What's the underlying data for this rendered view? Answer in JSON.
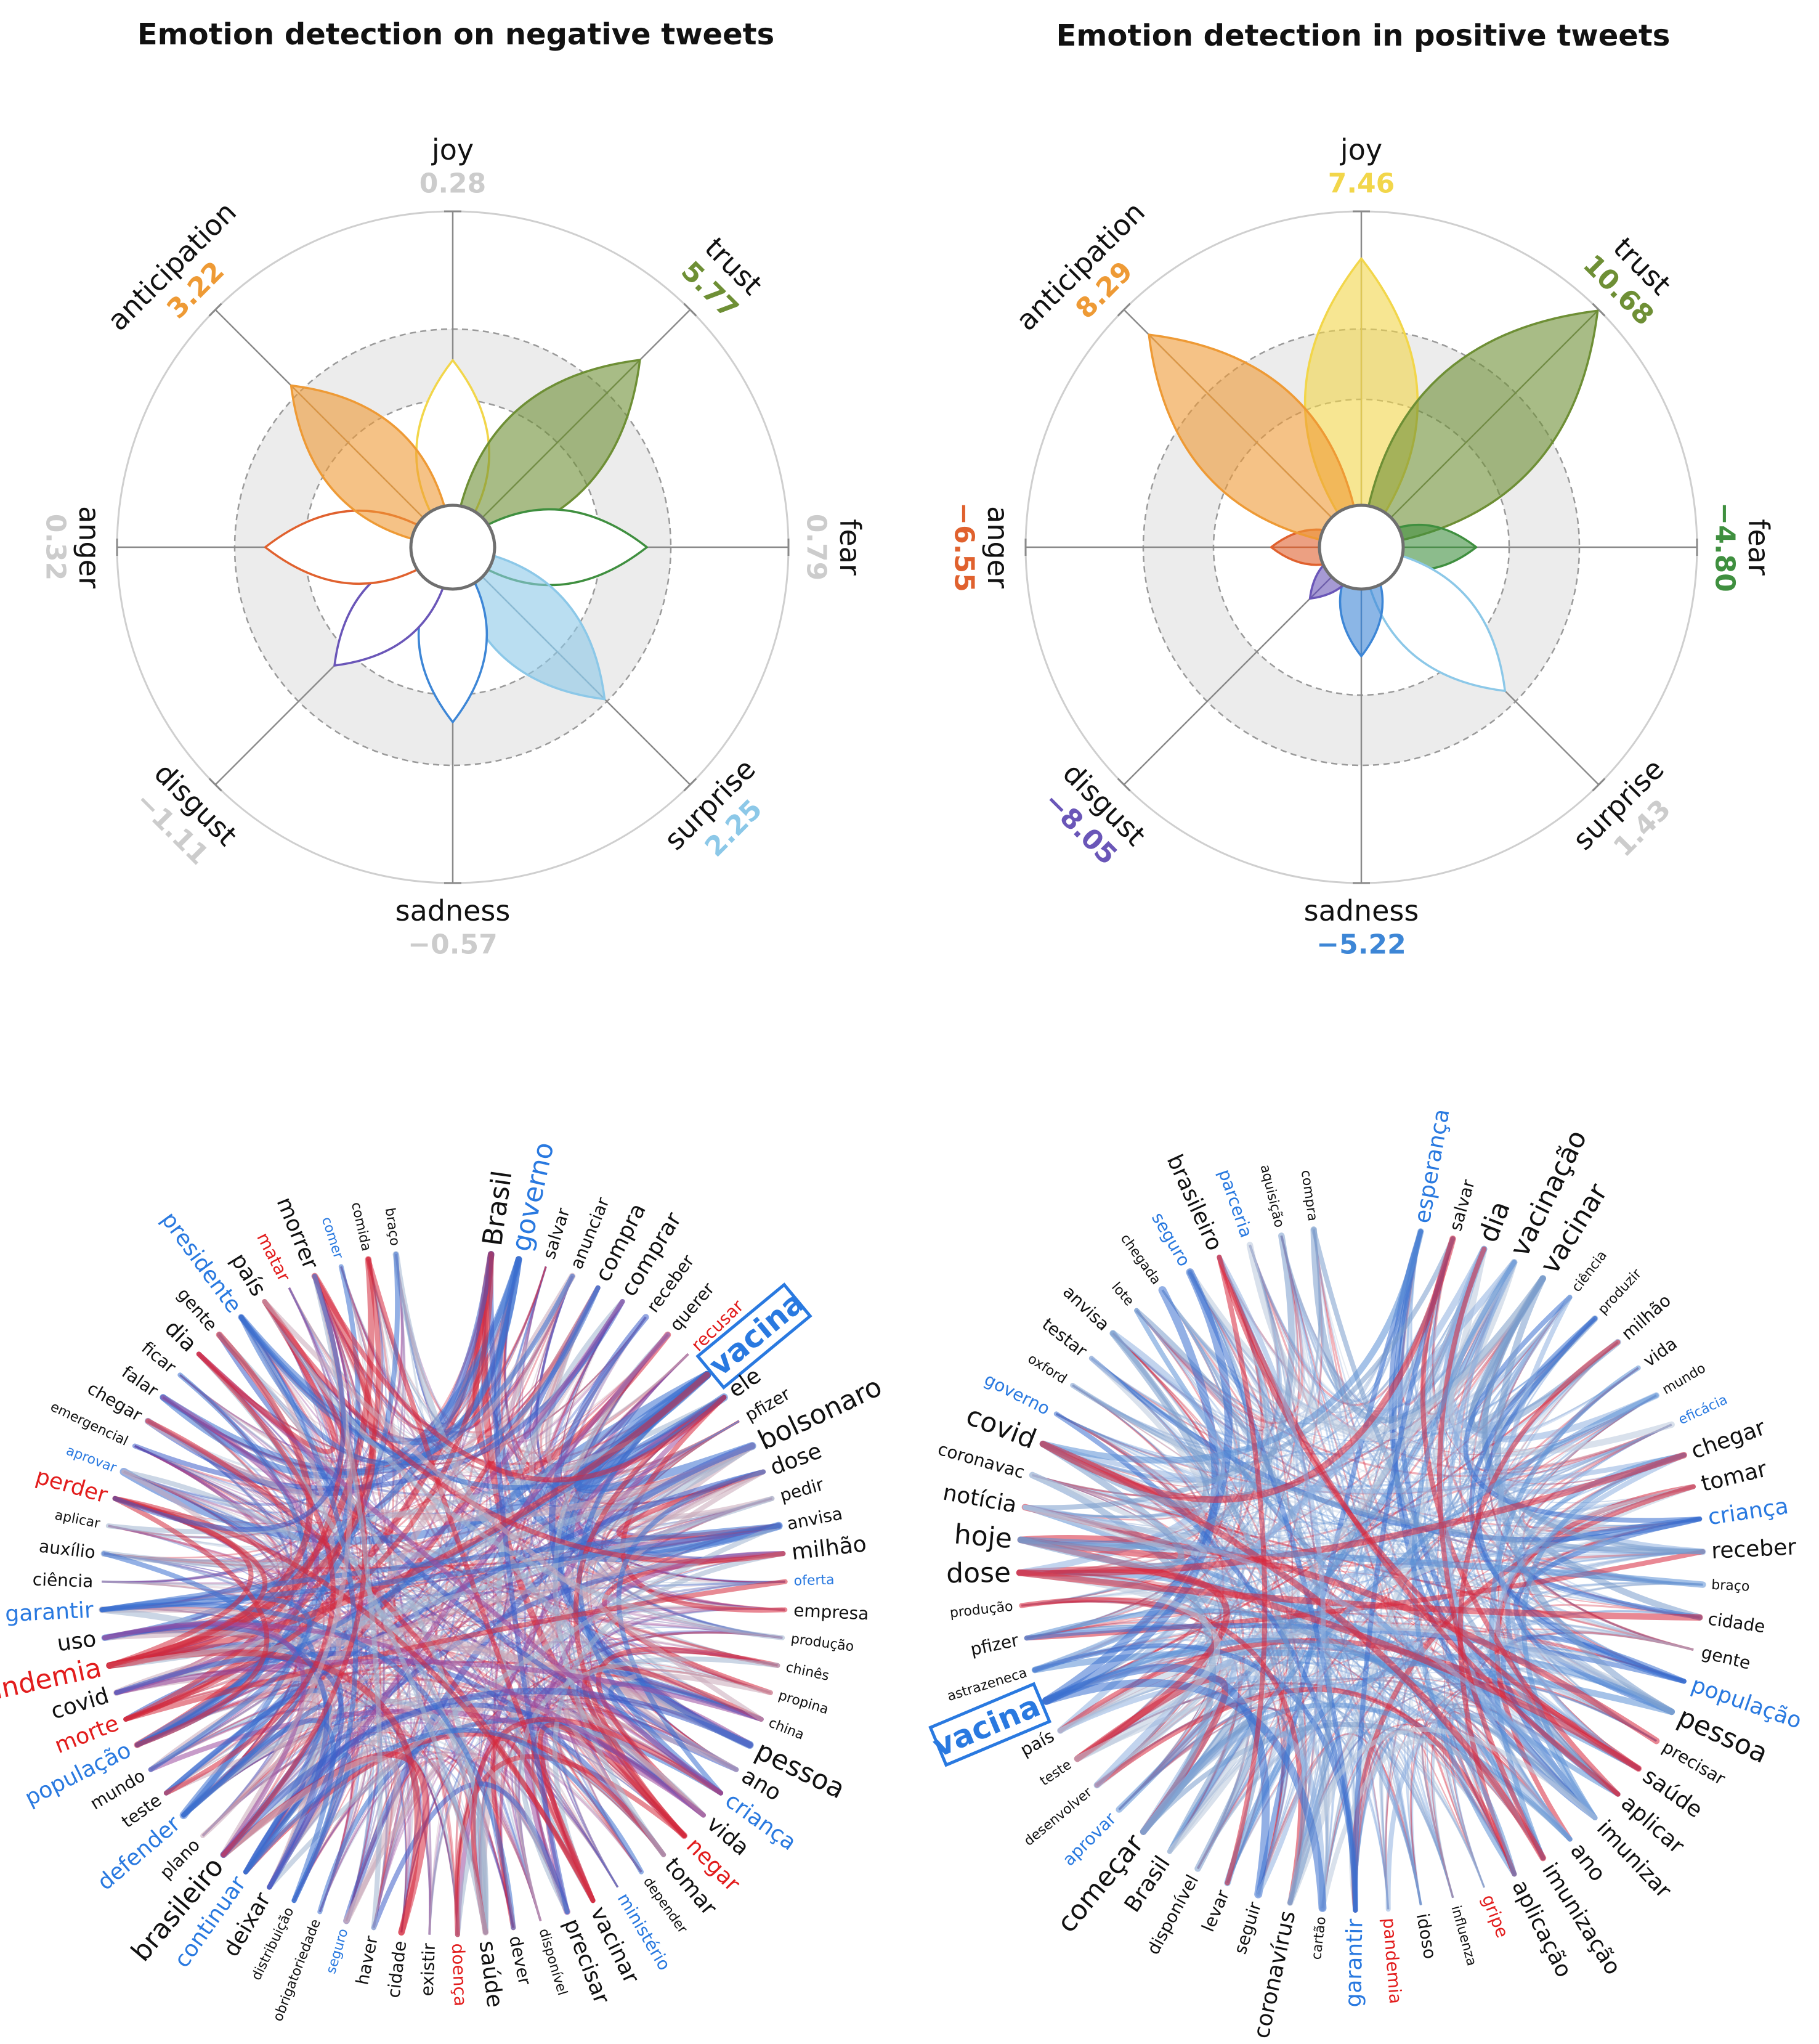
{
  "chart_data": [
    {
      "type": "radar",
      "title": "Emotion detection on negative tweets",
      "categories": [
        "joy",
        "trust",
        "fear",
        "surprise",
        "sadness",
        "disgust",
        "anger",
        "anticipation"
      ],
      "values": [
        0.28,
        5.77,
        0.79,
        2.25,
        -0.57,
        -1.11,
        0.32,
        3.22
      ],
      "value_labels": [
        "0.28",
        "5.77",
        "0.79",
        "2.25",
        "−0.57",
        "−1.11",
        "0.32",
        "3.22"
      ],
      "highlighted": [
        false,
        true,
        false,
        true,
        false,
        false,
        false,
        true
      ],
      "filled": [
        false,
        true,
        false,
        true,
        false,
        false,
        false,
        true
      ],
      "colors": {
        "joy": "#f2d64a",
        "trust": "#6e8f35",
        "fear": "#3f8f3f",
        "surprise": "#8cc8e8",
        "sadness": "#3d86d6",
        "disgust": "#6a56b8",
        "anger": "#e0612e",
        "anticipation": "#ee9a35",
        "muted": "#cccccc"
      }
    },
    {
      "type": "radar",
      "title": "Emotion detection in positive tweets",
      "categories": [
        "joy",
        "trust",
        "fear",
        "surprise",
        "sadness",
        "disgust",
        "anger",
        "anticipation"
      ],
      "values": [
        7.46,
        10.68,
        -4.8,
        1.43,
        -5.22,
        -8.05,
        -6.55,
        8.29
      ],
      "value_labels": [
        "7.46",
        "10.68",
        "−4.80",
        "1.43",
        "−5.22",
        "−8.05",
        "−6.55",
        "8.29"
      ],
      "highlighted": [
        true,
        true,
        true,
        false,
        true,
        true,
        true,
        true
      ],
      "filled": [
        true,
        true,
        true,
        false,
        true,
        true,
        true,
        true
      ],
      "colors": {
        "joy": "#f2d64a",
        "trust": "#6e8f35",
        "fear": "#3f8f3f",
        "surprise": "#8cc8e8",
        "sadness": "#3d86d6",
        "disgust": "#6a56b8",
        "anger": "#e0612e",
        "anticipation": "#ee9a35",
        "muted": "#cccccc"
      }
    },
    {
      "type": "chord",
      "highlighted_word": "vacina",
      "words": [
        {
          "t": "Brasil",
          "s": 3,
          "c": "k"
        },
        {
          "t": "governo",
          "s": 3,
          "c": "b"
        },
        {
          "t": "salvar",
          "s": 1,
          "c": "k"
        },
        {
          "t": "anunciar",
          "s": 1,
          "c": "k"
        },
        {
          "t": "compra",
          "s": 2,
          "c": "k"
        },
        {
          "t": "comprar",
          "s": 2,
          "c": "k"
        },
        {
          "t": "receber",
          "s": 1,
          "c": "k"
        },
        {
          "t": "querer",
          "s": 1,
          "c": "k"
        },
        {
          "t": "recusar",
          "s": 1,
          "c": "r"
        },
        {
          "t": "vacina",
          "s": 4,
          "c": "b"
        },
        {
          "t": "ele",
          "s": 2,
          "c": "k"
        },
        {
          "t": "pfizer",
          "s": 1,
          "c": "k"
        },
        {
          "t": "bolsonaro",
          "s": 3,
          "c": "k"
        },
        {
          "t": "dose",
          "s": 2,
          "c": "k"
        },
        {
          "t": "pedir",
          "s": 1,
          "c": "k"
        },
        {
          "t": "anvisa",
          "s": 1,
          "c": "k"
        },
        {
          "t": "milhão",
          "s": 2,
          "c": "k"
        },
        {
          "t": "oferta",
          "s": 0,
          "c": "b"
        },
        {
          "t": "empresa",
          "s": 1,
          "c": "k"
        },
        {
          "t": "produção",
          "s": 0,
          "c": "k"
        },
        {
          "t": "chinês",
          "s": 0,
          "c": "k"
        },
        {
          "t": "propina",
          "s": 0,
          "c": "k"
        },
        {
          "t": "china",
          "s": 0,
          "c": "k"
        },
        {
          "t": "pessoa",
          "s": 3,
          "c": "k"
        },
        {
          "t": "ano",
          "s": 2,
          "c": "k"
        },
        {
          "t": "criança",
          "s": 2,
          "c": "b"
        },
        {
          "t": "vida",
          "s": 2,
          "c": "k"
        },
        {
          "t": "negar",
          "s": 2,
          "c": "r"
        },
        {
          "t": "tomar",
          "s": 2,
          "c": "k"
        },
        {
          "t": "depender",
          "s": 0,
          "c": "k"
        },
        {
          "t": "ministério",
          "s": 1,
          "c": "b"
        },
        {
          "t": "vacinar",
          "s": 2,
          "c": "k"
        },
        {
          "t": "precisar",
          "s": 2,
          "c": "k"
        },
        {
          "t": "disponível",
          "s": 0,
          "c": "k"
        },
        {
          "t": "dever",
          "s": 1,
          "c": "k"
        },
        {
          "t": "saúde",
          "s": 2,
          "c": "k"
        },
        {
          "t": "doença",
          "s": 1,
          "c": "r"
        },
        {
          "t": "existir",
          "s": 1,
          "c": "k"
        },
        {
          "t": "cidade",
          "s": 1,
          "c": "k"
        },
        {
          "t": "haver",
          "s": 1,
          "c": "k"
        },
        {
          "t": "seguro",
          "s": 0,
          "c": "b"
        },
        {
          "t": "obrigatoriedade",
          "s": 0,
          "c": "k"
        },
        {
          "t": "distribuição",
          "s": 0,
          "c": "k"
        },
        {
          "t": "deixar",
          "s": 2,
          "c": "k"
        },
        {
          "t": "continuar",
          "s": 2,
          "c": "b"
        },
        {
          "t": "brasileiro",
          "s": 3,
          "c": "k"
        },
        {
          "t": "plano",
          "s": 1,
          "c": "k"
        },
        {
          "t": "defender",
          "s": 2,
          "c": "b"
        },
        {
          "t": "teste",
          "s": 1,
          "c": "k"
        },
        {
          "t": "mundo",
          "s": 1,
          "c": "k"
        },
        {
          "t": "população",
          "s": 2,
          "c": "b"
        },
        {
          "t": "morte",
          "s": 2,
          "c": "r"
        },
        {
          "t": "covid",
          "s": 2,
          "c": "k"
        },
        {
          "t": "pandemia",
          "s": 3,
          "c": "r"
        },
        {
          "t": "uso",
          "s": 2,
          "c": "k"
        },
        {
          "t": "garantir",
          "s": 2,
          "c": "b"
        },
        {
          "t": "ciência",
          "s": 1,
          "c": "k"
        },
        {
          "t": "auxílio",
          "s": 1,
          "c": "k"
        },
        {
          "t": "aplicar",
          "s": 0,
          "c": "k"
        },
        {
          "t": "perder",
          "s": 2,
          "c": "r"
        },
        {
          "t": "aprovar",
          "s": 0,
          "c": "b"
        },
        {
          "t": "emergencial",
          "s": 0,
          "c": "k"
        },
        {
          "t": "chegar",
          "s": 1,
          "c": "k"
        },
        {
          "t": "falar",
          "s": 1,
          "c": "k"
        },
        {
          "t": "ficar",
          "s": 1,
          "c": "k"
        },
        {
          "t": "dia",
          "s": 2,
          "c": "k"
        },
        {
          "t": "gente",
          "s": 1,
          "c": "k"
        },
        {
          "t": "presidente",
          "s": 2,
          "c": "b"
        },
        {
          "t": "país",
          "s": 2,
          "c": "k"
        },
        {
          "t": "matar",
          "s": 1,
          "c": "r"
        },
        {
          "t": "morrer",
          "s": 2,
          "c": "k"
        },
        {
          "t": "comer",
          "s": 0,
          "c": "b"
        },
        {
          "t": "comida",
          "s": 0,
          "c": "k"
        },
        {
          "t": "braço",
          "s": 0,
          "c": "k"
        }
      ]
    },
    {
      "type": "chord",
      "highlighted_word": "vacina",
      "words": [
        {
          "t": "esperança",
          "s": 2,
          "c": "b"
        },
        {
          "t": "salvar",
          "s": 1,
          "c": "k"
        },
        {
          "t": "dia",
          "s": 3,
          "c": "k"
        },
        {
          "t": "vacinação",
          "s": 3,
          "c": "k"
        },
        {
          "t": "vacinar",
          "s": 3,
          "c": "k"
        },
        {
          "t": "ciência",
          "s": 0,
          "c": "k"
        },
        {
          "t": "produzir",
          "s": 0,
          "c": "k"
        },
        {
          "t": "milhão",
          "s": 1,
          "c": "k"
        },
        {
          "t": "vida",
          "s": 1,
          "c": "k"
        },
        {
          "t": "mundo",
          "s": 0,
          "c": "k"
        },
        {
          "t": "eficácia",
          "s": 0,
          "c": "b"
        },
        {
          "t": "chegar",
          "s": 2,
          "c": "k"
        },
        {
          "t": "tomar",
          "s": 2,
          "c": "k"
        },
        {
          "t": "criança",
          "s": 2,
          "c": "b"
        },
        {
          "t": "receber",
          "s": 2,
          "c": "k"
        },
        {
          "t": "braço",
          "s": 0,
          "c": "k"
        },
        {
          "t": "cidade",
          "s": 1,
          "c": "k"
        },
        {
          "t": "gente",
          "s": 1,
          "c": "k"
        },
        {
          "t": "população",
          "s": 2,
          "c": "b"
        },
        {
          "t": "pessoa",
          "s": 3,
          "c": "k"
        },
        {
          "t": "precisar",
          "s": 1,
          "c": "k"
        },
        {
          "t": "saúde",
          "s": 2,
          "c": "k"
        },
        {
          "t": "aplicar",
          "s": 2,
          "c": "k"
        },
        {
          "t": "imunizar",
          "s": 2,
          "c": "k"
        },
        {
          "t": "ano",
          "s": 2,
          "c": "k"
        },
        {
          "t": "imunização",
          "s": 2,
          "c": "k"
        },
        {
          "t": "aplicação",
          "s": 2,
          "c": "k"
        },
        {
          "t": "gripe",
          "s": 1,
          "c": "r"
        },
        {
          "t": "influenza",
          "s": 0,
          "c": "k"
        },
        {
          "t": "idoso",
          "s": 1,
          "c": "k"
        },
        {
          "t": "pandemia",
          "s": 1,
          "c": "r"
        },
        {
          "t": "garantir",
          "s": 2,
          "c": "b"
        },
        {
          "t": "cartão",
          "s": 0,
          "c": "k"
        },
        {
          "t": "coronavírus",
          "s": 2,
          "c": "k"
        },
        {
          "t": "seguir",
          "s": 1,
          "c": "k"
        },
        {
          "t": "levar",
          "s": 1,
          "c": "k"
        },
        {
          "t": "disponível",
          "s": 1,
          "c": "k"
        },
        {
          "t": "Brasil",
          "s": 2,
          "c": "k"
        },
        {
          "t": "começar",
          "s": 3,
          "c": "k"
        },
        {
          "t": "aprovar",
          "s": 1,
          "c": "b"
        },
        {
          "t": "desenvolver",
          "s": 0,
          "c": "k"
        },
        {
          "t": "teste",
          "s": 0,
          "c": "k"
        },
        {
          "t": "país",
          "s": 1,
          "c": "k"
        },
        {
          "t": "vacina",
          "s": 4,
          "c": "b"
        },
        {
          "t": "astrazeneca",
          "s": 0,
          "c": "k"
        },
        {
          "t": "pfizer",
          "s": 1,
          "c": "k"
        },
        {
          "t": "produção",
          "s": 0,
          "c": "k"
        },
        {
          "t": "dose",
          "s": 3,
          "c": "k"
        },
        {
          "t": "hoje",
          "s": 3,
          "c": "k"
        },
        {
          "t": "notícia",
          "s": 2,
          "c": "k"
        },
        {
          "t": "coronavac",
          "s": 1,
          "c": "k"
        },
        {
          "t": "covid",
          "s": 3,
          "c": "k"
        },
        {
          "t": "governo",
          "s": 1,
          "c": "b"
        },
        {
          "t": "oxford",
          "s": 0,
          "c": "k"
        },
        {
          "t": "testar",
          "s": 1,
          "c": "k"
        },
        {
          "t": "anvisa",
          "s": 1,
          "c": "k"
        },
        {
          "t": "lote",
          "s": 0,
          "c": "k"
        },
        {
          "t": "chegada",
          "s": 0,
          "c": "k"
        },
        {
          "t": "seguro",
          "s": 1,
          "c": "b"
        },
        {
          "t": "brasileiro",
          "s": 2,
          "c": "k"
        },
        {
          "t": "parceria",
          "s": 1,
          "c": "b"
        },
        {
          "t": "aquisição",
          "s": 0,
          "c": "k"
        },
        {
          "t": "compra",
          "s": 0,
          "c": "k"
        }
      ]
    }
  ]
}
